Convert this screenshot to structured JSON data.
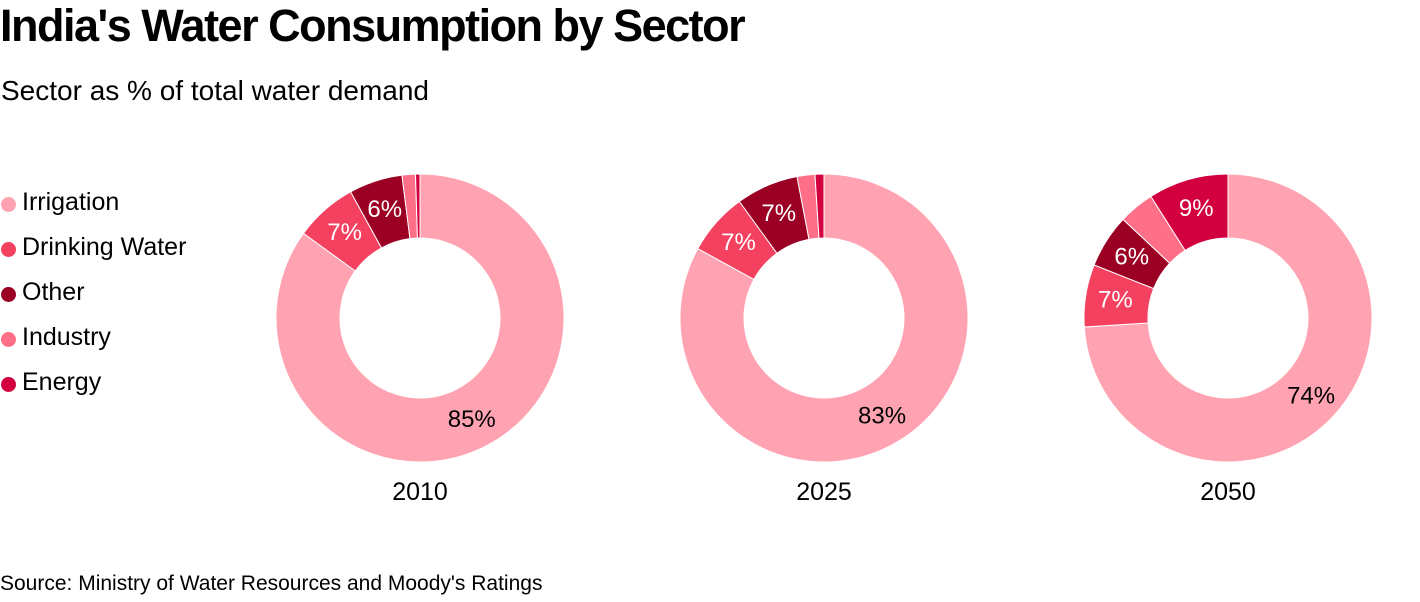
{
  "chart_data": {
    "type": "pie",
    "variant": "donut",
    "title": "India's Water Consumption by Sector",
    "subtitle": "Sector as % of total water demand",
    "source": "Source: Ministry of Water Resources and Moody's Ratings",
    "legend_position": "left",
    "categories": [
      "Irrigation",
      "Drinking Water",
      "Other",
      "Industry",
      "Energy"
    ],
    "colors": [
      "#ffa3b3",
      "#f3415f",
      "#9b0024",
      "#ff7088",
      "#d2003f"
    ],
    "label_colors": [
      "#000000",
      "#ffffff",
      "#ffffff",
      "#ffffff",
      "#ffffff"
    ],
    "charts": [
      {
        "label": "2010",
        "values": [
          85,
          7,
          6,
          1.5,
          0.5
        ],
        "labels": [
          "85%",
          "7%",
          "6%",
          "",
          ""
        ]
      },
      {
        "label": "2025",
        "values": [
          83,
          7,
          7,
          2,
          1
        ],
        "labels": [
          "83%",
          "7%",
          "7%",
          "",
          ""
        ]
      },
      {
        "label": "2050",
        "values": [
          74,
          7,
          6,
          4,
          9
        ],
        "labels": [
          "74%",
          "7%",
          "6%",
          "",
          "9%"
        ]
      }
    ]
  }
}
